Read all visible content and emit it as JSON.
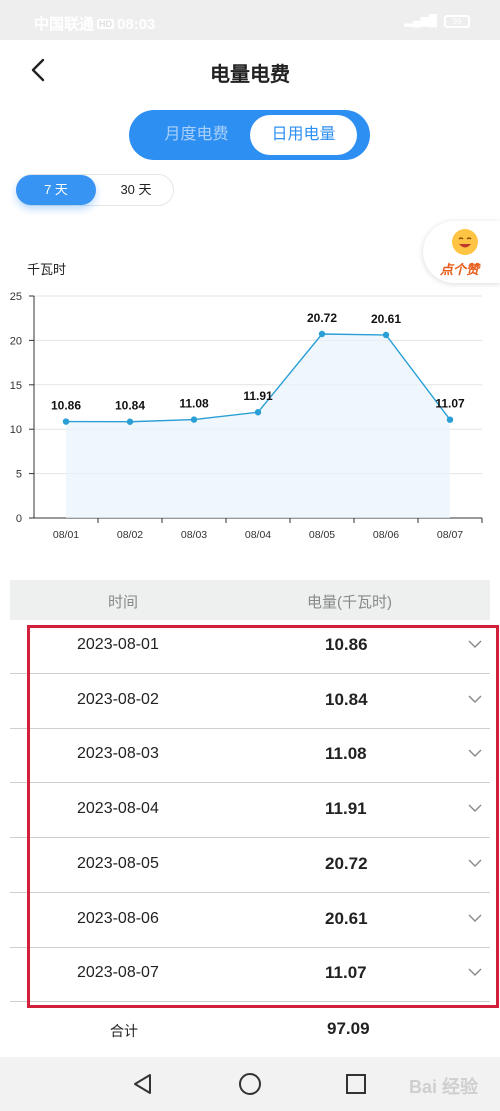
{
  "status_bar": {
    "carrier": "中国联通",
    "network_badge": "HD",
    "time": "08:03",
    "battery": "99"
  },
  "header": {
    "title": "电量电费",
    "back_icon": "chevron-left-icon"
  },
  "tabs": [
    {
      "label": "月度电费",
      "selected": false
    },
    {
      "label": "日用电量",
      "selected": true
    }
  ],
  "range": {
    "options": [
      {
        "label": "7 天",
        "selected": true
      },
      {
        "label": "30 天",
        "selected": false
      }
    ]
  },
  "like_badge": {
    "label": "点个赞",
    "icon": "smiley-face-icon"
  },
  "colors": {
    "accent": "#2e8ff2",
    "line": "#2a9fd6",
    "highlight_border": "#d0203a"
  },
  "chart_data": {
    "type": "line",
    "ylabel": "千瓦时",
    "categories": [
      "08/01",
      "08/02",
      "08/03",
      "08/04",
      "08/05",
      "08/06",
      "08/07"
    ],
    "values": [
      10.86,
      10.84,
      11.08,
      11.91,
      20.72,
      20.61,
      11.07
    ],
    "data_labels": [
      "10.86",
      "10.84",
      "11.08",
      "11.91",
      "20.72",
      "20.61",
      "11.07"
    ],
    "yticks": [
      "0",
      "5",
      "10",
      "15",
      "20",
      "25"
    ],
    "ylim": [
      0,
      25
    ],
    "grid": true,
    "area_fill": true
  },
  "table": {
    "headers": [
      "时间",
      "电量(千瓦时)"
    ],
    "rows": [
      {
        "date": "2023-08-01",
        "value": "10.86"
      },
      {
        "date": "2023-08-02",
        "value": "10.84"
      },
      {
        "date": "2023-08-03",
        "value": "11.08"
      },
      {
        "date": "2023-08-04",
        "value": "11.91"
      },
      {
        "date": "2023-08-05",
        "value": "20.72"
      },
      {
        "date": "2023-08-06",
        "value": "20.61"
      },
      {
        "date": "2023-08-07",
        "value": "11.07"
      }
    ],
    "row_icon": "chevron-down-icon",
    "total_label": "合计",
    "total_value": "97.09"
  },
  "system_nav": {
    "buttons": [
      "back-triangle-icon",
      "home-circle-icon",
      "recents-square-icon"
    ],
    "watermark": "Bai 经验"
  }
}
